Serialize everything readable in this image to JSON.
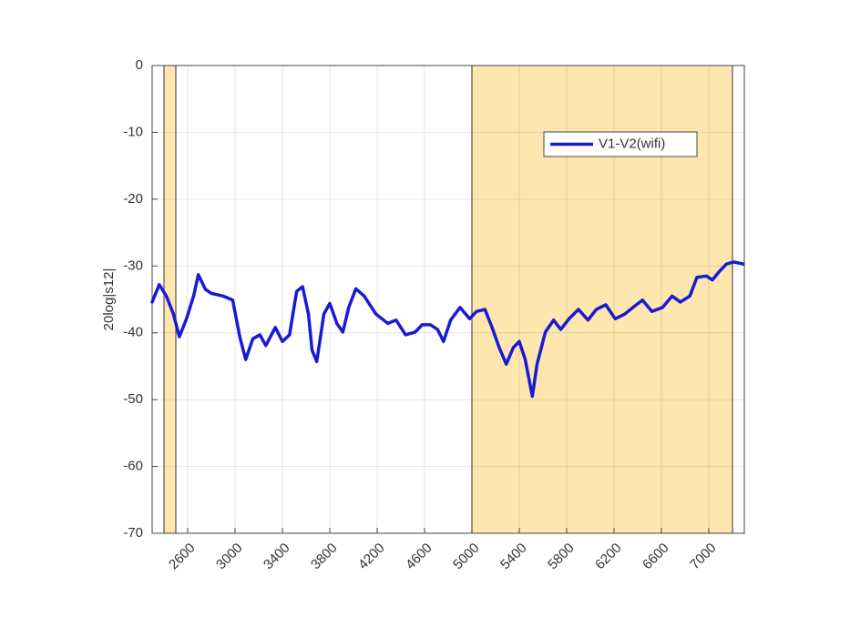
{
  "chart_data": {
    "type": "line",
    "y_label": "20log|s12|",
    "x": [
      2300,
      2360,
      2420,
      2480,
      2530,
      2590,
      2650,
      2690,
      2750,
      2800,
      2900,
      2980,
      3040,
      3090,
      3150,
      3210,
      3260,
      3340,
      3400,
      3460,
      3520,
      3570,
      3620,
      3650,
      3690,
      3750,
      3800,
      3860,
      3910,
      3960,
      4020,
      4090,
      4190,
      4290,
      4360,
      4440,
      4520,
      4580,
      4650,
      4710,
      4760,
      4820,
      4900,
      4980,
      5040,
      5110,
      5170,
      5230,
      5290,
      5350,
      5400,
      5450,
      5510,
      5550,
      5620,
      5690,
      5750,
      5820,
      5900,
      5980,
      6050,
      6130,
      6210,
      6290,
      6360,
      6440,
      6520,
      6610,
      6690,
      6760,
      6840,
      6900,
      6980,
      7030,
      7090,
      7150,
      7210,
      7290
    ],
    "series": [
      {
        "name": "V1-V2(wifi)",
        "color": "#1a1ad6",
        "values": [
          -35.4,
          -32.8,
          -34.5,
          -37.2,
          -40.6,
          -37.9,
          -34.5,
          -31.3,
          -33.5,
          -34.1,
          -34.5,
          -35.1,
          -40.6,
          -44,
          -40.9,
          -40.3,
          -41.9,
          -39.2,
          -41.3,
          -40.3,
          -33.8,
          -33.1,
          -37.2,
          -42.6,
          -44.3,
          -37.2,
          -35.6,
          -38.6,
          -39.9,
          -36.2,
          -33.4,
          -34.5,
          -37.2,
          -38.6,
          -38.1,
          -40.3,
          -39.9,
          -38.8,
          -38.8,
          -39.5,
          -41.3,
          -38.1,
          -36.2,
          -37.9,
          -36.8,
          -36.5,
          -39.2,
          -42.2,
          -44.7,
          -42.2,
          -41.3,
          -44,
          -49.5,
          -44.7,
          -39.9,
          -38.1,
          -39.5,
          -37.9,
          -36.5,
          -38.1,
          -36.5,
          -35.8,
          -37.9,
          -37.2,
          -36.2,
          -35.1,
          -36.8,
          -36.2,
          -34.5,
          -35.4,
          -34.5,
          -31.7,
          -31.5,
          -32.1,
          -30.8,
          -29.7,
          -29.4,
          -29.7
        ]
      }
    ],
    "bands": [
      {
        "from": 2400,
        "to": 2500,
        "color": "#fde7ae"
      },
      {
        "from": 5000,
        "to": 7200,
        "color": "#fde7ae"
      }
    ],
    "xlim": [
      2300,
      7300
    ],
    "ylim": [
      -70,
      0
    ],
    "xticks": [
      2600,
      3000,
      3400,
      3800,
      4200,
      4600,
      5000,
      5400,
      5800,
      6200,
      6600,
      7000
    ],
    "yticks": [
      0,
      -10,
      -20,
      -30,
      -40,
      -50,
      -60,
      -70
    ],
    "grid": true,
    "legend": "upper right"
  }
}
